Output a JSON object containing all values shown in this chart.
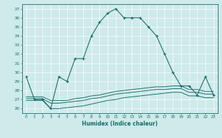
{
  "xlabel": "Humidex (Indice chaleur)",
  "ylabel": "",
  "background_color": "#ceeaea",
  "line_color": "#1a6b6b",
  "grid_color": "#b0d8d8",
  "xlim": [
    -0.5,
    23.5
  ],
  "ylim": [
    25.5,
    37.5
  ],
  "yticks": [
    26,
    27,
    28,
    29,
    30,
    31,
    32,
    33,
    34,
    35,
    36,
    37
  ],
  "xticks": [
    0,
    1,
    2,
    3,
    4,
    5,
    6,
    7,
    8,
    9,
    10,
    11,
    12,
    13,
    14,
    15,
    16,
    17,
    18,
    19,
    20,
    21,
    22,
    23
  ],
  "main_line": {
    "x": [
      0,
      1,
      2,
      3,
      4,
      5,
      6,
      7,
      8,
      9,
      10,
      11,
      12,
      13,
      14,
      15,
      16,
      17,
      18,
      19,
      20,
      21,
      22,
      23
    ],
    "y": [
      29.5,
      27.0,
      27.0,
      26.0,
      29.5,
      29.0,
      31.5,
      31.5,
      34.0,
      35.5,
      36.5,
      37.0,
      36.0,
      36.0,
      36.0,
      35.0,
      34.0,
      32.0,
      30.0,
      28.5,
      28.5,
      27.5,
      29.5,
      27.5
    ]
  },
  "flat_lines": [
    {
      "x": [
        0,
        1,
        2,
        3,
        4,
        5,
        6,
        7,
        8,
        9,
        10,
        11,
        12,
        13,
        14,
        15,
        16,
        17,
        18,
        19,
        20,
        21,
        22,
        23
      ],
      "y": [
        26.9,
        26.9,
        26.9,
        26.0,
        26.0,
        26.1,
        26.2,
        26.3,
        26.5,
        26.7,
        26.9,
        27.0,
        27.2,
        27.3,
        27.4,
        27.5,
        27.6,
        27.7,
        27.8,
        27.8,
        27.4,
        27.4,
        27.2,
        27.2
      ]
    },
    {
      "x": [
        0,
        1,
        2,
        3,
        4,
        5,
        6,
        7,
        8,
        9,
        10,
        11,
        12,
        13,
        14,
        15,
        16,
        17,
        18,
        19,
        20,
        21,
        22,
        23
      ],
      "y": [
        27.1,
        27.1,
        27.1,
        26.6,
        26.6,
        26.7,
        26.8,
        26.9,
        27.1,
        27.2,
        27.4,
        27.6,
        27.7,
        27.8,
        27.9,
        28.0,
        28.1,
        28.1,
        28.2,
        28.2,
        27.8,
        27.8,
        27.6,
        27.6
      ]
    },
    {
      "x": [
        0,
        1,
        2,
        3,
        4,
        5,
        6,
        7,
        8,
        9,
        10,
        11,
        12,
        13,
        14,
        15,
        16,
        17,
        18,
        19,
        20,
        21,
        22,
        23
      ],
      "y": [
        27.3,
        27.3,
        27.3,
        26.9,
        26.9,
        26.9,
        27.1,
        27.2,
        27.4,
        27.5,
        27.7,
        27.9,
        28.0,
        28.1,
        28.2,
        28.3,
        28.4,
        28.4,
        28.5,
        28.5,
        28.1,
        28.1,
        27.9,
        27.9
      ]
    }
  ]
}
